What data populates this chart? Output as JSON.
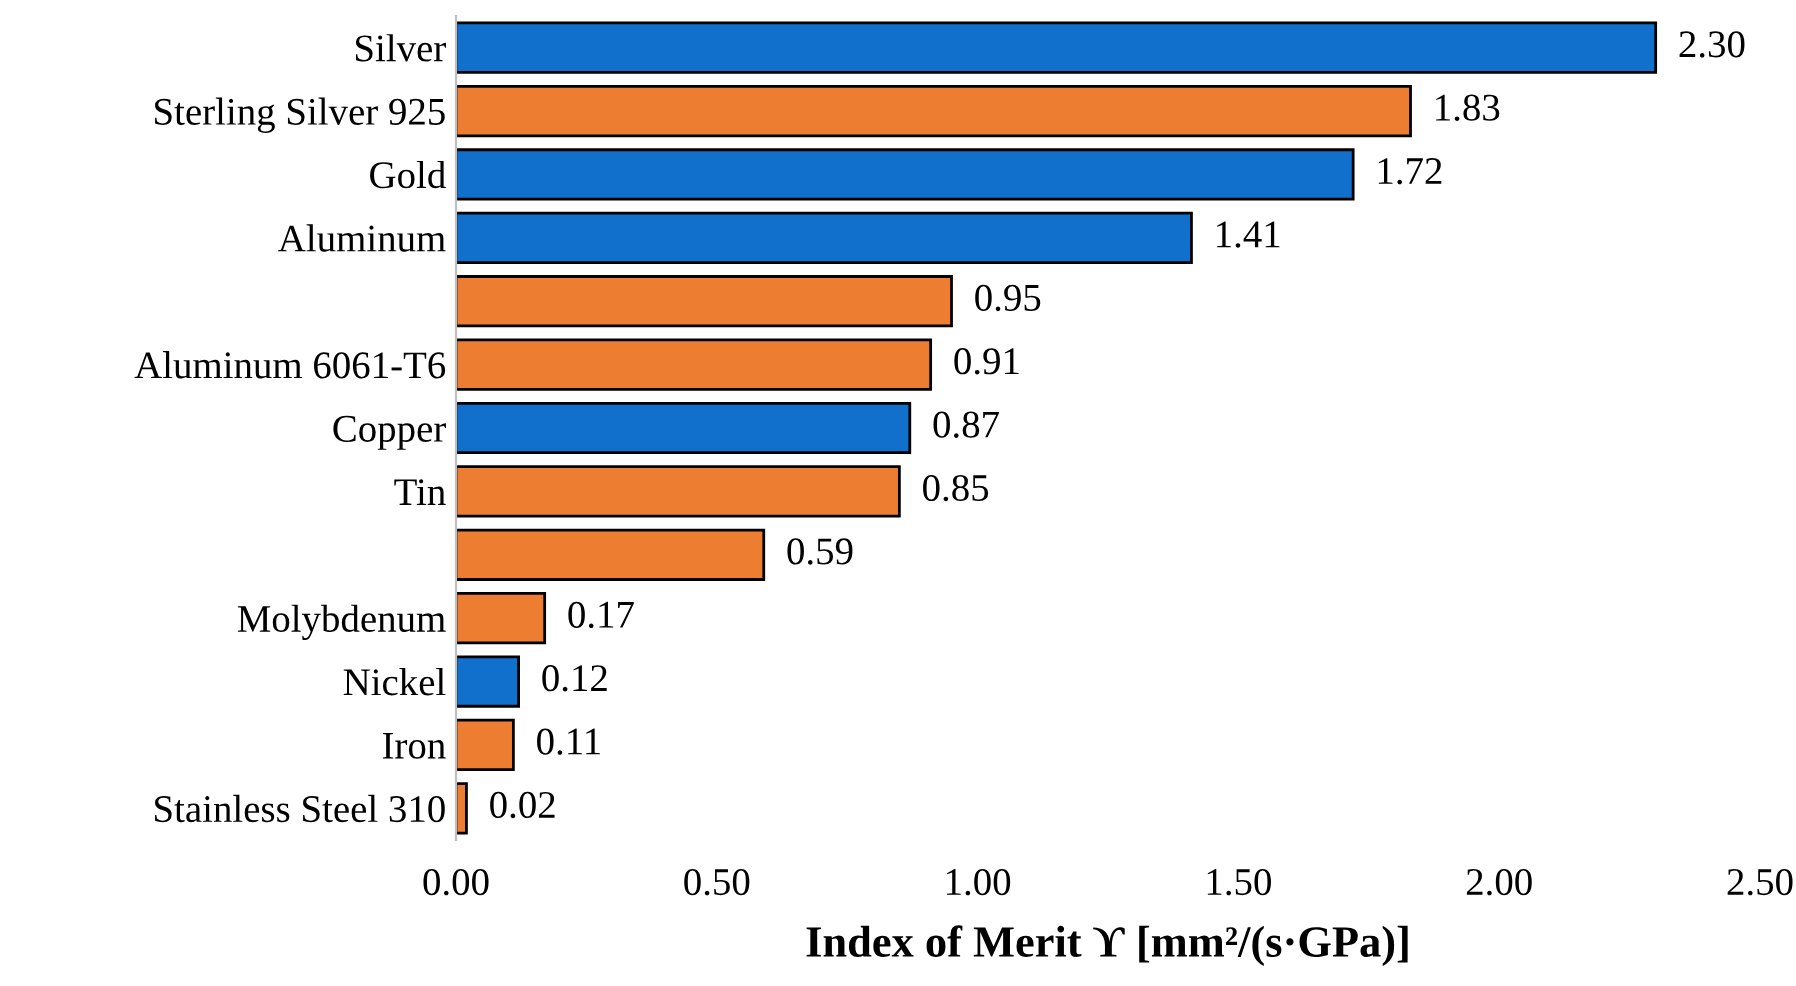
{
  "chart_data": {
    "type": "bar",
    "orientation": "horizontal",
    "xlabel": "Index of Merit ϒ [mm²/(s·GPa)]",
    "categories": [
      "Silver",
      "Sterling Silver 925",
      "Gold",
      "Aluminum",
      null,
      "Aluminum 6061-T6",
      "Copper",
      "Tin",
      null,
      "Molybdenum",
      "Nickel",
      "Iron",
      "Stainless Steel 310"
    ],
    "values": [
      2.3,
      1.83,
      1.72,
      1.41,
      0.95,
      0.91,
      0.87,
      0.85,
      0.59,
      0.17,
      0.12,
      0.11,
      0.02
    ],
    "value_labels": [
      "2.30",
      "1.83",
      "1.72",
      "1.41",
      "0.95",
      "0.91",
      "0.87",
      "0.85",
      "0.59",
      "0.17",
      "0.12",
      "0.11",
      "0.02"
    ],
    "colors": [
      "#1170cc",
      "#ed7d31",
      "#1170cc",
      "#1170cc",
      "#ed7d31",
      "#ed7d31",
      "#1170cc",
      "#ed7d31",
      "#ed7d31",
      "#ed7d31",
      "#1170cc",
      "#ed7d31",
      "#ed7d31"
    ],
    "xlim": [
      0,
      2.5
    ],
    "xticks": [
      {
        "value": 0,
        "label": "0.00"
      },
      {
        "value": 0.5,
        "label": "0.50"
      },
      {
        "value": 1,
        "label": "1.00"
      },
      {
        "value": 1.5,
        "label": "1.50"
      },
      {
        "value": 2,
        "label": "2.00"
      },
      {
        "value": 2.5,
        "label": "2.50"
      }
    ],
    "grid": false,
    "legend": false
  }
}
